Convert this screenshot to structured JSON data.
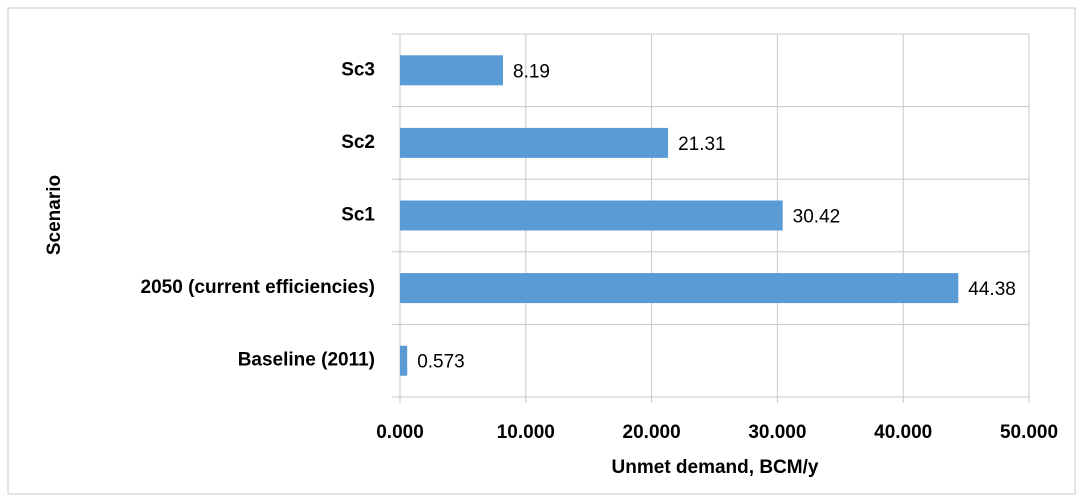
{
  "chart_data": {
    "type": "hbar",
    "x_label": "Unmet demand, BCM/y",
    "y_label": "Scenario",
    "categories": [
      "Baseline (2011)",
      "2050 (current efficiencies)",
      "Sc1",
      "Sc2",
      "Sc3"
    ],
    "values": [
      0.573,
      44.38,
      30.42,
      21.31,
      8.19
    ],
    "color": "#5b9bd5",
    "xlim": [
      0,
      50
    ],
    "xticks": [
      {
        "value": 0,
        "label": "0.000"
      },
      {
        "value": 10,
        "label": "10.000"
      },
      {
        "value": 20,
        "label": "20.000"
      },
      {
        "value": 30,
        "label": "30.000"
      },
      {
        "value": 40,
        "label": "40.000"
      },
      {
        "value": 50,
        "label": "50.000"
      }
    ],
    "grid": true
  }
}
